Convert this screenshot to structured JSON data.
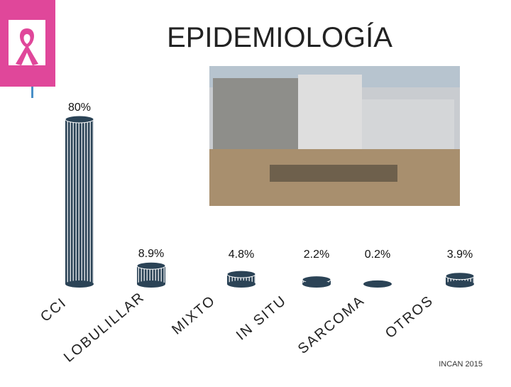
{
  "chart_data": {
    "type": "bar",
    "title": "EPIDEMIOLOGÍA",
    "categories": [
      "CCI",
      "LOBULILLAR",
      "MIXTO",
      "IN SITU",
      "SARCOMA",
      "OTROS"
    ],
    "values": [
      80,
      8.9,
      4.8,
      2.2,
      0.2,
      3.9
    ],
    "value_labels": [
      "80%",
      "8.9%",
      "4.8%",
      "2.2%",
      "0.2%",
      "3.9%"
    ],
    "color": "#2b4356",
    "source": "INCAN 2015"
  }
}
